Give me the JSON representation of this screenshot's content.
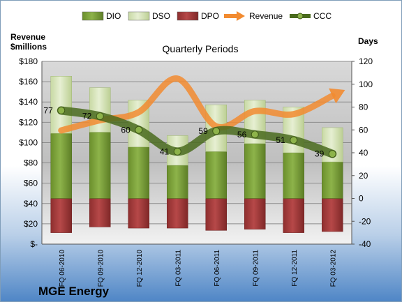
{
  "chart_data": {
    "type": "bar",
    "title": "Quarterly Periods",
    "company": "MGE Energy",
    "left_axis_label_line1": "Revenue",
    "left_axis_label_line2": "$millions",
    "right_axis_label": "Days",
    "categories": [
      "FQ 06-2010",
      "FQ 09-2010",
      "FQ 12-2010",
      "FQ 03-2011",
      "FQ 06-2011",
      "FQ 09-2011",
      "FQ 12-2011",
      "FQ 03-2012"
    ],
    "left_axis": {
      "min": 0,
      "max": 180,
      "step": 20,
      "tick_labels": [
        "$-",
        "$20",
        "$40",
        "$60",
        "$80",
        "$100",
        "$120",
        "$140",
        "$160",
        "$180"
      ]
    },
    "right_axis": {
      "min": -40,
      "max": 120,
      "step": 20,
      "tick_labels": [
        "-40",
        "-20",
        "0",
        "20",
        "40",
        "60",
        "80",
        "100",
        "120"
      ]
    },
    "series": [
      {
        "name": "DIO",
        "kind": "stacked-bar",
        "axis": "right",
        "color": "#7ea03c",
        "values": [
          57,
          58,
          45,
          29,
          41,
          48,
          40,
          32
        ]
      },
      {
        "name": "DSO",
        "kind": "stacked-bar",
        "axis": "right",
        "color": "#d7e4bd",
        "values": [
          50,
          39,
          41,
          26,
          41,
          38,
          40,
          30
        ]
      },
      {
        "name": "DPO",
        "kind": "stacked-bar",
        "axis": "right",
        "color": "#a33a3a",
        "values": [
          30,
          25,
          26,
          26,
          28,
          27,
          30,
          29
        ]
      },
      {
        "name": "Revenue",
        "kind": "smooth-arrow",
        "axis": "left",
        "color": "#f28b30",
        "values": [
          112,
          122,
          130,
          163,
          116,
          131,
          128,
          146
        ]
      },
      {
        "name": "CCC",
        "kind": "smooth-line",
        "axis": "right",
        "color": "#4a6b1e",
        "values": [
          77,
          72,
          60,
          41,
          59,
          56,
          51,
          39
        ]
      }
    ],
    "grid": true,
    "legend_position": "top"
  }
}
